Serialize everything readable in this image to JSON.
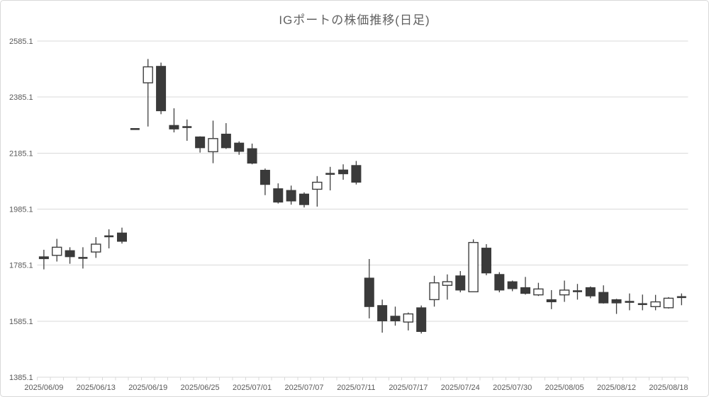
{
  "title": "IGポートの株価推移(日足)",
  "y_axis": {
    "tick_labels": [
      "2585.1",
      "2385.1",
      "2185.1",
      "1985.1",
      "1785.1",
      "1585.1",
      "1385.1"
    ],
    "tick_values": [
      2585.1,
      2385.1,
      2185.1,
      1985.1,
      1785.1,
      1585.1,
      1385.1
    ]
  },
  "x_axis": {
    "visible_labels": [
      "2025/06/09",
      "2025/06/13",
      "2025/06/19",
      "2025/06/25",
      "2025/07/01",
      "2025/07/07",
      "2025/07/11",
      "2025/07/17",
      "2025/07/24",
      "2025/07/30",
      "2025/08/05",
      "2025/08/12",
      "2025/08/18"
    ],
    "label_every_n_bars": 4
  },
  "chart_data": {
    "type": "candlestick",
    "title": "IGポートの株価推移(日足)",
    "ylim": [
      1385.1,
      2585.1
    ],
    "ytick_step": 200,
    "grid": true,
    "legend": false,
    "x": [
      "2025/06/09",
      "2025/06/10",
      "2025/06/11",
      "2025/06/12",
      "2025/06/13",
      "2025/06/16",
      "2025/06/17",
      "2025/06/18",
      "2025/06/19",
      "2025/06/20",
      "2025/06/23",
      "2025/06/24",
      "2025/06/25",
      "2025/06/26",
      "2025/06/27",
      "2025/06/30",
      "2025/07/01",
      "2025/07/02",
      "2025/07/03",
      "2025/07/04",
      "2025/07/07",
      "2025/07/08",
      "2025/07/09",
      "2025/07/10",
      "2025/07/11",
      "2025/07/14",
      "2025/07/15",
      "2025/07/16",
      "2025/07/17",
      "2025/07/18",
      "2025/07/22",
      "2025/07/23",
      "2025/07/24",
      "2025/07/25",
      "2025/07/28",
      "2025/07/29",
      "2025/07/30",
      "2025/07/31",
      "2025/08/01",
      "2025/08/04",
      "2025/08/05",
      "2025/08/06",
      "2025/08/07",
      "2025/08/08",
      "2025/08/12",
      "2025/08/13",
      "2025/08/14",
      "2025/08/15",
      "2025/08/18",
      "2025/08/19"
    ],
    "ohlc": [
      [
        1815,
        1840,
        1770,
        1808
      ],
      [
        1820,
        1879,
        1798,
        1849
      ],
      [
        1837,
        1849,
        1790,
        1815
      ],
      [
        1811,
        1849,
        1773,
        1811
      ],
      [
        1832,
        1885,
        1811,
        1860
      ],
      [
        1888,
        1913,
        1845,
        1888
      ],
      [
        1900,
        1919,
        1862,
        1870
      ],
      [
        2271,
        2271,
        2271,
        2271
      ],
      [
        2436,
        2521,
        2280,
        2493
      ],
      [
        2495,
        2508,
        2324,
        2336
      ],
      [
        2284,
        2345,
        2259,
        2271
      ],
      [
        2278,
        2305,
        2229,
        2278
      ],
      [
        2243,
        2245,
        2187,
        2204
      ],
      [
        2190,
        2301,
        2149,
        2237
      ],
      [
        2253,
        2292,
        2200,
        2204
      ],
      [
        2221,
        2227,
        2179,
        2191
      ],
      [
        2201,
        2219,
        2145,
        2149
      ],
      [
        2124,
        2130,
        2035,
        2073
      ],
      [
        2058,
        2077,
        2005,
        2010
      ],
      [
        2052,
        2069,
        2001,
        2014
      ],
      [
        2039,
        2045,
        1991,
        2001
      ],
      [
        2056,
        2103,
        1994,
        2081
      ],
      [
        2111,
        2136,
        2052,
        2111
      ],
      [
        2125,
        2145,
        2090,
        2111
      ],
      [
        2141,
        2157,
        2073,
        2081
      ],
      [
        1739,
        1807,
        1595,
        1637
      ],
      [
        1641,
        1662,
        1544,
        1586
      ],
      [
        1603,
        1637,
        1569,
        1586
      ],
      [
        1582,
        1616,
        1552,
        1611
      ],
      [
        1633,
        1641,
        1541,
        1548
      ],
      [
        1662,
        1747,
        1637,
        1722
      ],
      [
        1713,
        1752,
        1662,
        1726
      ],
      [
        1747,
        1764,
        1688,
        1696
      ],
      [
        1690,
        1877,
        1690,
        1866
      ],
      [
        1846,
        1860,
        1749,
        1757
      ],
      [
        1752,
        1760,
        1688,
        1696
      ],
      [
        1726,
        1730,
        1692,
        1701
      ],
      [
        1705,
        1743,
        1680,
        1684
      ],
      [
        1679,
        1722,
        1675,
        1700
      ],
      [
        1662,
        1696,
        1628,
        1654
      ],
      [
        1679,
        1730,
        1654,
        1696
      ],
      [
        1692,
        1718,
        1662,
        1692
      ],
      [
        1705,
        1709,
        1667,
        1675
      ],
      [
        1688,
        1713,
        1648,
        1650
      ],
      [
        1662,
        1665,
        1611,
        1650
      ],
      [
        1654,
        1684,
        1624,
        1654
      ],
      [
        1646,
        1680,
        1624,
        1646
      ],
      [
        1637,
        1679,
        1624,
        1654
      ],
      [
        1633,
        1671,
        1630,
        1667
      ],
      [
        1671,
        1684,
        1642,
        1671
      ]
    ],
    "colors": {
      "up_fill": "#ffffff",
      "up_stroke": "#3f3f3f",
      "down_fill": "#3a3a3a",
      "down_stroke": "#3a3a3a",
      "wick": "#3f3f3f",
      "grid": "#d9d9d9",
      "axis_line": "#d9d9d9",
      "axis_text": "#595959",
      "title_text": "#626262"
    }
  }
}
